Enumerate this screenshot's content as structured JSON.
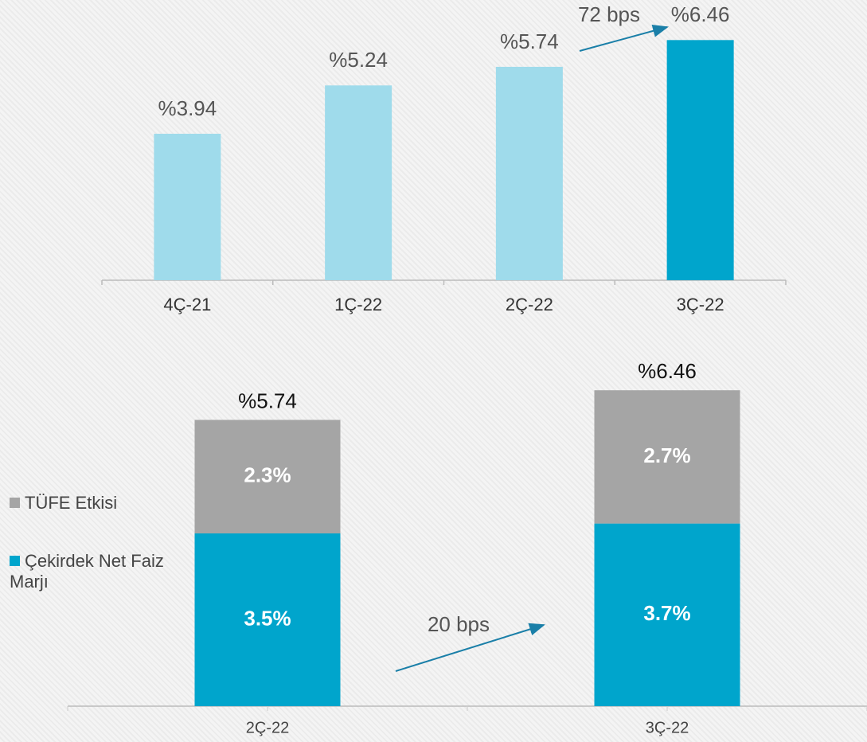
{
  "chart_data": [
    {
      "type": "bar",
      "categories": [
        "4Ç-21",
        "1Ç-22",
        "2Ç-22",
        "3Ç-22"
      ],
      "values": [
        3.94,
        5.24,
        5.74,
        6.46
      ],
      "value_labels": [
        "%3.94",
        "%5.24",
        "%5.74",
        "%6.46"
      ],
      "colors": [
        "#9fdbeb",
        "#9fdbeb",
        "#9fdbeb",
        "#00a5cc"
      ],
      "annotations": [
        "72 bps"
      ]
    },
    {
      "type": "stacked_bar",
      "categories": [
        "2Ç-22",
        "3Ç-22"
      ],
      "series": [
        {
          "name": "Çekirdek Net Faiz Marjı",
          "color": "#00a5cc",
          "values": [
            3.5,
            3.7
          ],
          "value_labels": [
            "3.5%",
            "3.7%"
          ]
        },
        {
          "name": "TÜFE Etkisi",
          "color": "#a5a5a5",
          "values": [
            2.3,
            2.7
          ],
          "value_labels": [
            "2.3%",
            "2.7%"
          ]
        }
      ],
      "totals": [
        5.74,
        6.46
      ],
      "total_labels": [
        "%5.74",
        "%6.46"
      ],
      "annotations": [
        "20 bps"
      ]
    }
  ]
}
